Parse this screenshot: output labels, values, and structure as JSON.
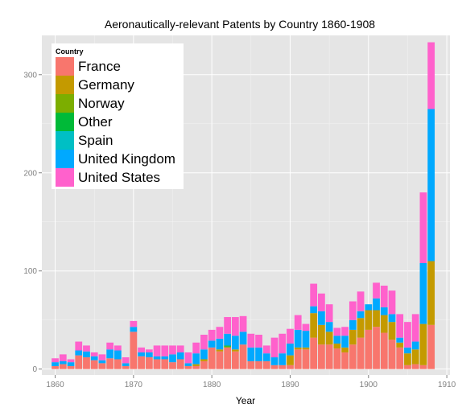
{
  "chart_data": {
    "type": "bar",
    "stacked": true,
    "title": "Aeronautically-relevant Patents by Country 1860-1908",
    "xlabel": "Year",
    "ylabel": "",
    "xlim": [
      1858.3,
      1910.4
    ],
    "ylim": [
      -6,
      340
    ],
    "x_ticks": [
      1860,
      1870,
      1880,
      1890,
      1900,
      1910
    ],
    "y_ticks": [
      0,
      100,
      200,
      300
    ],
    "legend_title": "Country",
    "legend_position": "top-left inside",
    "grid": true,
    "colors": {
      "France": "#F8766D",
      "Germany": "#C49A00",
      "Norway": "#7CAE00",
      "Other": "#00BA38",
      "Spain": "#00BFC4",
      "United Kingdom": "#00A9FF",
      "United States": "#FF61CC"
    },
    "years": [
      1860,
      1861,
      1862,
      1863,
      1864,
      1865,
      1866,
      1867,
      1868,
      1869,
      1870,
      1871,
      1872,
      1873,
      1874,
      1875,
      1876,
      1877,
      1878,
      1879,
      1880,
      1881,
      1882,
      1883,
      1884,
      1885,
      1886,
      1887,
      1888,
      1889,
      1890,
      1891,
      1892,
      1893,
      1894,
      1895,
      1896,
      1897,
      1898,
      1899,
      1900,
      1901,
      1902,
      1903,
      1904,
      1905,
      1906,
      1907,
      1908
    ],
    "series": [
      {
        "name": "France",
        "values": [
          3,
          5,
          3,
          14,
          12,
          9,
          6,
          11,
          10,
          3,
          38,
          13,
          12,
          10,
          10,
          7,
          10,
          3,
          3,
          8,
          22,
          18,
          22,
          18,
          25,
          8,
          8,
          8,
          4,
          4,
          4,
          20,
          20,
          32,
          25,
          25,
          21,
          17,
          25,
          32,
          40,
          43,
          37,
          30,
          22,
          4,
          5,
          4,
          45
        ]
      },
      {
        "name": "Germany",
        "values": [
          0,
          0,
          0,
          0,
          0,
          0,
          0,
          0,
          0,
          0,
          0,
          0,
          0,
          0,
          0,
          0,
          0,
          0,
          2,
          2,
          0,
          2,
          0,
          2,
          0,
          0,
          0,
          0,
          0,
          0,
          10,
          2,
          2,
          25,
          20,
          13,
          5,
          5,
          15,
          20,
          20,
          17,
          18,
          18,
          5,
          12,
          15,
          42,
          65
        ]
      },
      {
        "name": "Norway",
        "values": [
          0,
          0,
          0,
          0,
          0,
          0,
          0,
          0,
          0,
          0,
          0,
          0,
          0,
          0,
          0,
          0,
          0,
          0,
          0,
          0,
          0,
          0,
          1,
          0,
          0,
          0,
          0,
          0,
          0,
          0,
          0,
          0,
          0,
          0,
          0,
          0,
          0,
          0,
          0,
          0,
          0,
          0,
          0,
          0,
          0,
          0,
          0,
          0,
          0
        ]
      },
      {
        "name": "Other",
        "values": [
          0,
          0,
          0,
          0,
          0,
          0,
          0,
          0,
          0,
          0,
          0,
          0,
          0,
          0,
          0,
          0,
          0,
          0,
          0,
          0,
          0,
          0,
          1,
          0,
          0,
          0,
          0,
          0,
          0,
          0,
          0,
          0,
          0,
          0,
          0,
          0,
          0,
          0,
          0,
          0,
          0,
          0,
          0,
          0,
          0,
          0,
          0,
          0,
          0
        ]
      },
      {
        "name": "Spain",
        "values": [
          0,
          0,
          0,
          0,
          0,
          0,
          0,
          0,
          0,
          0,
          0,
          0,
          0,
          0,
          0,
          0,
          0,
          0,
          0,
          0,
          0,
          0,
          0,
          0,
          0,
          0,
          0,
          0,
          0,
          0,
          0,
          0,
          0,
          0,
          0,
          0,
          0,
          0,
          0,
          0,
          0,
          0,
          0,
          0,
          0,
          0,
          0,
          0,
          0
        ]
      },
      {
        "name": "United Kingdom",
        "values": [
          4,
          3,
          4,
          5,
          6,
          4,
          3,
          9,
          9,
          3,
          5,
          4,
          5,
          3,
          3,
          8,
          7,
          3,
          11,
          10,
          7,
          11,
          12,
          14,
          13,
          14,
          14,
          8,
          8,
          12,
          12,
          18,
          17,
          7,
          14,
          10,
          8,
          12,
          10,
          7,
          6,
          12,
          8,
          8,
          5,
          6,
          8,
          62,
          155
        ]
      },
      {
        "name": "United States",
        "values": [
          4,
          7,
          3,
          9,
          6,
          4,
          6,
          7,
          5,
          6,
          6,
          5,
          3,
          11,
          11,
          9,
          7,
          11,
          11,
          15,
          11,
          12,
          17,
          19,
          16,
          14,
          13,
          8,
          20,
          20,
          15,
          15,
          7,
          23,
          18,
          18,
          8,
          9,
          19,
          20,
          0,
          16,
          22,
          24,
          24,
          26,
          28,
          72,
          68
        ]
      }
    ]
  }
}
